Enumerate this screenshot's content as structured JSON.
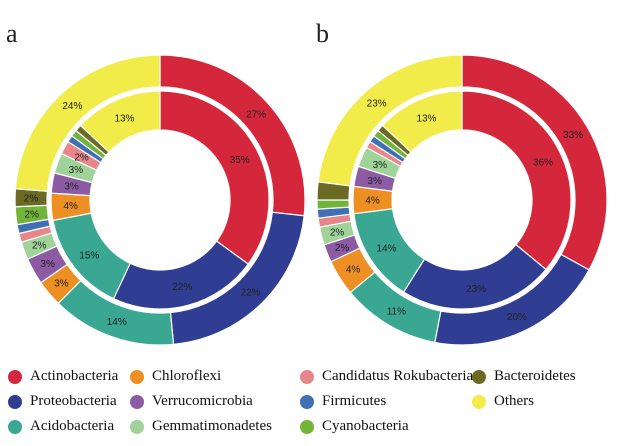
{
  "colors": {
    "Actinobacteria": "#d5273b",
    "Proteobacteria": "#2f3d92",
    "Acidobacteria": "#3aa793",
    "Chloroflexi": "#ee8f24",
    "Verrucomicrobia": "#8c5ba3",
    "Gemmatimonadetes": "#9fd39a",
    "Candidatus Rokubacteria": "#e8868a",
    "Firmicutes": "#3f6fb4",
    "Cyanobacteria": "#72b43a",
    "Bacteroidetes": "#6b6a25",
    "Others": "#f2ec4a"
  },
  "chart_data": [
    {
      "type": "pie",
      "panel": "a",
      "outer_ring": [
        {
          "name": "Actinobacteria",
          "value": 27,
          "label": "27%"
        },
        {
          "name": "Proteobacteria",
          "value": 22,
          "label": "22%"
        },
        {
          "name": "Acidobacteria",
          "value": 14,
          "label": "14%"
        },
        {
          "name": "Chloroflexi",
          "value": 3,
          "label": "3%"
        },
        {
          "name": "Verrucomicrobia",
          "value": 3,
          "label": "3%"
        },
        {
          "name": "Gemmatimonadetes",
          "value": 2,
          "label": "2%"
        },
        {
          "name": "Candidatus Rokubacteria",
          "value": 1,
          "label": ""
        },
        {
          "name": "Firmicutes",
          "value": 1,
          "label": ""
        },
        {
          "name": "Cyanobacteria",
          "value": 2,
          "label": "2%"
        },
        {
          "name": "Bacteroidetes",
          "value": 2,
          "label": "2%"
        },
        {
          "name": "Others",
          "value": 24,
          "label": "24%"
        }
      ],
      "inner_ring": [
        {
          "name": "Actinobacteria",
          "value": 35,
          "label": "35%"
        },
        {
          "name": "Proteobacteria",
          "value": 22,
          "label": "22%"
        },
        {
          "name": "Acidobacteria",
          "value": 15,
          "label": "15%"
        },
        {
          "name": "Chloroflexi",
          "value": 4,
          "label": "4%"
        },
        {
          "name": "Verrucomicrobia",
          "value": 3,
          "label": "3%"
        },
        {
          "name": "Gemmatimonadetes",
          "value": 3,
          "label": "3%"
        },
        {
          "name": "Candidatus Rokubacteria",
          "value": 2,
          "label": "2%"
        },
        {
          "name": "Firmicutes",
          "value": 1,
          "label": ""
        },
        {
          "name": "Cyanobacteria",
          "value": 1,
          "label": ""
        },
        {
          "name": "Bacteroidetes",
          "value": 1,
          "label": ""
        },
        {
          "name": "Others",
          "value": 13,
          "label": "13%"
        }
      ]
    },
    {
      "type": "pie",
      "panel": "b",
      "outer_ring": [
        {
          "name": "Actinobacteria",
          "value": 33,
          "label": "33%"
        },
        {
          "name": "Proteobacteria",
          "value": 20,
          "label": "20%"
        },
        {
          "name": "Acidobacteria",
          "value": 11,
          "label": "11%"
        },
        {
          "name": "Chloroflexi",
          "value": 4,
          "label": "4%"
        },
        {
          "name": "Verrucomicrobia",
          "value": 2,
          "label": "2%"
        },
        {
          "name": "Gemmatimonadetes",
          "value": 2,
          "label": "2%"
        },
        {
          "name": "Candidatus Rokubacteria",
          "value": 1,
          "label": ""
        },
        {
          "name": "Firmicutes",
          "value": 1,
          "label": ""
        },
        {
          "name": "Cyanobacteria",
          "value": 1,
          "label": ""
        },
        {
          "name": "Bacteroidetes",
          "value": 2,
          "label": ""
        },
        {
          "name": "Others",
          "value": 23,
          "label": "23%"
        }
      ],
      "inner_ring": [
        {
          "name": "Actinobacteria",
          "value": 36,
          "label": "36%"
        },
        {
          "name": "Proteobacteria",
          "value": 23,
          "label": "23%"
        },
        {
          "name": "Acidobacteria",
          "value": 14,
          "label": "14%"
        },
        {
          "name": "Chloroflexi",
          "value": 4,
          "label": "4%"
        },
        {
          "name": "Verrucomicrobia",
          "value": 3,
          "label": "3%"
        },
        {
          "name": "Gemmatimonadetes",
          "value": 3,
          "label": "3%"
        },
        {
          "name": "Candidatus Rokubacteria",
          "value": 1,
          "label": ""
        },
        {
          "name": "Firmicutes",
          "value": 1,
          "label": ""
        },
        {
          "name": "Cyanobacteria",
          "value": 1,
          "label": ""
        },
        {
          "name": "Bacteroidetes",
          "value": 1,
          "label": ""
        },
        {
          "name": "Others",
          "value": 13,
          "label": "13%"
        }
      ]
    }
  ],
  "legend": {
    "items": [
      "Actinobacteria",
      "Proteobacteria",
      "Acidobacteria",
      "Chloroflexi",
      "Verrucomicrobia",
      "Gemmatimonadetes",
      "Candidatus Rokubacteria",
      "Firmicutes",
      "Cyanobacteria",
      "Bacteroidetes",
      "Others"
    ]
  }
}
